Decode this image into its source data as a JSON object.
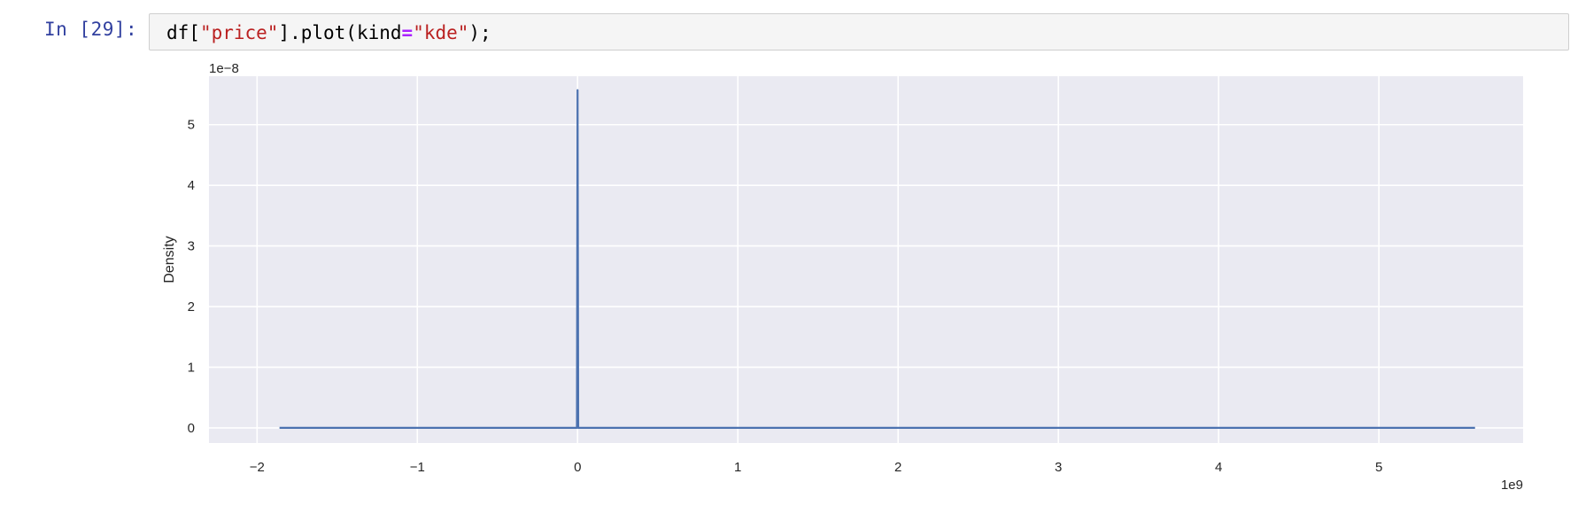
{
  "cell": {
    "prompt": "In [29]:",
    "code_tokens": [
      {
        "text": "df[",
        "kind": "plain"
      },
      {
        "text": "\"price\"",
        "kind": "string"
      },
      {
        "text": "].plot(kind",
        "kind": "plain"
      },
      {
        "text": "=",
        "kind": "operator"
      },
      {
        "text": "\"kde\"",
        "kind": "string"
      },
      {
        "text": ");",
        "kind": "plain"
      }
    ]
  },
  "colors": {
    "prompt": "#303F9F",
    "string": "#BA2121",
    "operator": "#AA22FF",
    "plot_bg": "#EAEAF2",
    "grid": "#FFFFFF",
    "line": "#4C72B0"
  },
  "chart_data": {
    "type": "line",
    "title": "",
    "xlabel": "",
    "ylabel": "Density",
    "x_offset_label": "1e9",
    "y_offset_label": "1e−8",
    "xlim": [
      -2.3,
      5.9
    ],
    "ylim": [
      -0.25,
      5.8
    ],
    "xticks": [
      -2,
      -1,
      0,
      1,
      2,
      3,
      4,
      5
    ],
    "xtick_labels": [
      "−2",
      "−1",
      "0",
      "1",
      "2",
      "3",
      "4",
      "5"
    ],
    "yticks": [
      0,
      1,
      2,
      3,
      4,
      5
    ],
    "ytick_labels": [
      "0",
      "1",
      "2",
      "3",
      "4",
      "5"
    ],
    "grid": true,
    "series": [
      {
        "x": [
          -1.86,
          -0.01,
          -0.004,
          0.0,
          0.004,
          0.01,
          5.6
        ],
        "y": [
          0.0,
          0.0,
          0.0,
          5.57,
          0.0,
          0.0,
          0.0
        ]
      }
    ]
  }
}
